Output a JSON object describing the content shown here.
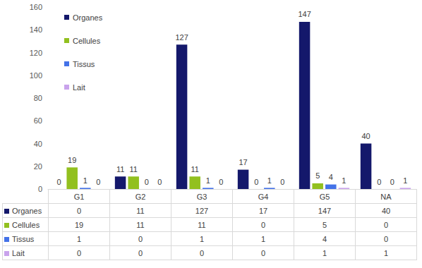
{
  "chart_data": {
    "type": "bar",
    "categories": [
      "G1",
      "G2",
      "G3",
      "G4",
      "G5",
      "NA"
    ],
    "series": [
      {
        "name": "Organes",
        "color": "#14186b",
        "values": [
          0,
          11,
          127,
          17,
          147,
          40
        ]
      },
      {
        "name": "Cellules",
        "color": "#92c01f",
        "values": [
          19,
          11,
          11,
          0,
          5,
          0
        ]
      },
      {
        "name": "Tissus",
        "color": "#4472e8",
        "values": [
          1,
          0,
          1,
          1,
          4,
          0
        ]
      },
      {
        "name": "Lait",
        "color": "#c9a3ec",
        "values": [
          0,
          0,
          0,
          0,
          1,
          1
        ]
      }
    ],
    "ylim": [
      0,
      160
    ],
    "yticks": [
      0,
      20,
      40,
      60,
      80,
      100,
      120,
      140,
      160
    ],
    "grid": false,
    "legend": "top-left",
    "data_labels": true
  }
}
